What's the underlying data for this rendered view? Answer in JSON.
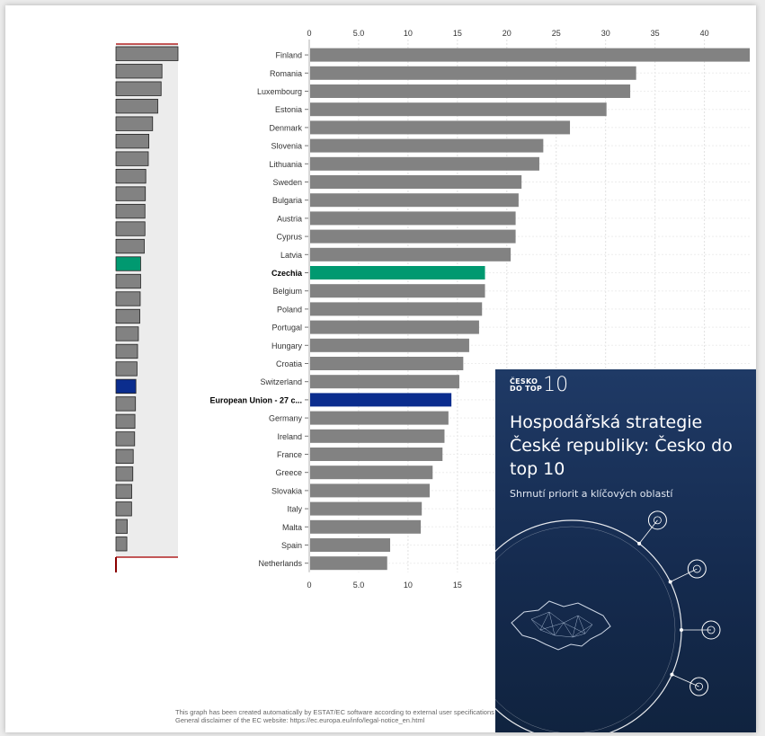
{
  "chart_data": {
    "type": "bar",
    "orientation": "horizontal",
    "categories": [
      "Finland",
      "Romania",
      "Luxembourg",
      "Estonia",
      "Denmark",
      "Slovenia",
      "Lithuania",
      "Sweden",
      "Bulgaria",
      "Austria",
      "Cyprus",
      "Latvia",
      "Czechia",
      "Belgium",
      "Poland",
      "Portugal",
      "Hungary",
      "Croatia",
      "Switzerland",
      "European Union - 27 c...",
      "Germany",
      "Ireland",
      "France",
      "Greece",
      "Slovakia",
      "Italy",
      "Malta",
      "Spain",
      "Netherlands"
    ],
    "values": [
      44.5,
      33.0,
      32.4,
      30.0,
      26.3,
      23.6,
      23.2,
      21.4,
      21.1,
      20.8,
      20.8,
      20.3,
      17.7,
      17.7,
      17.4,
      17.1,
      16.1,
      15.5,
      15.1,
      14.3,
      14.0,
      13.6,
      13.4,
      12.4,
      12.1,
      11.3,
      11.2,
      8.1,
      7.8
    ],
    "highlight": {
      "Czechia": "#009970",
      "European Union - 27 c...": "#0b2d8e"
    },
    "bold_categories": [
      "Czechia",
      "European Union - 27 c..."
    ],
    "bar_color": "#828282",
    "x_ticks": [
      "0",
      "5.0",
      "10",
      "15",
      "20",
      "25",
      "30",
      "35",
      "40"
    ],
    "bottom_ticks": [
      "0",
      "5.0",
      "10",
      "15"
    ],
    "xlim": [
      0,
      44.5
    ],
    "grid": true,
    "overview_strip": true
  },
  "footer": {
    "line1": "This graph has been created automatically by ESTAT/EC software according to external user specifications for which ESTAT/EC is n",
    "line2": "General disclaimer of the EC website: https://ec.europa.eu/info/legal-notice_en.html"
  },
  "overlay": {
    "logo_line1": "ČESKO",
    "logo_line2": "DO TOP",
    "logo_number": "10",
    "title": "Hospodářská strategie České republiky: Česko do top 10",
    "subtitle": "Shrnutí priorit a klíčových oblastí",
    "icons": [
      "robot-icon",
      "graduation-cap-icon",
      "handshake-icon",
      "atom-icon",
      "hand-coin-icon",
      "leaf-icon",
      "globe-icon",
      "shield-icon",
      "monitor-icon"
    ],
    "colors": {
      "background": "#1a3460",
      "accent": "#ffffff"
    }
  }
}
